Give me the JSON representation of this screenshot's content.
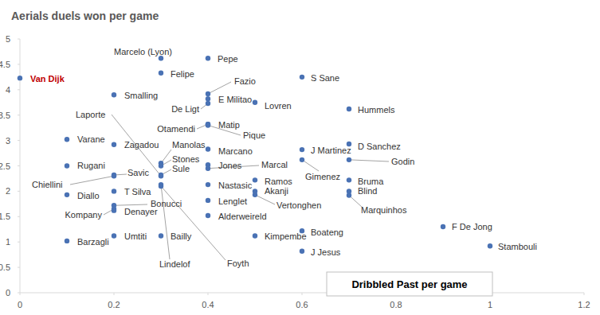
{
  "chart_data": {
    "type": "scatter",
    "title": "Aerials duels won per game",
    "x_label": "Dribbled Past per game",
    "xlim": [
      0,
      1.2
    ],
    "xticks": [
      0,
      0.2,
      0.4,
      0.6,
      0.8,
      1,
      1.2
    ],
    "ylim": [
      0,
      5
    ],
    "yticks": [
      0,
      0.5,
      1,
      1.5,
      2,
      2.5,
      3,
      3.5,
      4,
      4.5,
      5
    ],
    "grid": false,
    "color": "#4a72b4",
    "marker": "circle",
    "labels": [
      "Van Dijk",
      "Marcelo (Lyon)",
      "Pepe",
      "Felipe",
      "Smalling",
      "Fazio",
      "E Militao",
      "De Ligt",
      "Lovren",
      "S Sane",
      "Hummels",
      "Otamendi",
      "Matip",
      "Pique",
      "Varane",
      "Laporte",
      "Zagadou",
      "Manolas",
      "Stones",
      "Savic",
      "Sule",
      "Chiellini",
      "Rugani",
      "Marcano",
      "Jones",
      "Marcal",
      "J Martinez",
      "D Sanchez",
      "Gimenez",
      "Godin",
      "T Silva",
      "Diallo",
      "Lindelof",
      "Foyth",
      "Nastasic",
      "Ramos",
      "Akanji",
      "Vertonghen",
      "Bruma",
      "Blind",
      "Marquinhos",
      "Bonucci",
      "Kompany",
      "Denayer",
      "Lenglet",
      "Alderweireld",
      "Umtiti",
      "Barzagli",
      "Bailly",
      "Kimpembe",
      "Boateng",
      "J Jesus",
      "F De Jong",
      "Stambouli"
    ],
    "x": [
      0,
      0.3,
      0.4,
      0.3,
      0.2,
      0.4,
      0.4,
      0.4,
      0.5,
      0.6,
      0.7,
      0.4,
      0.4,
      0.4,
      0.1,
      0.3,
      0.2,
      0.3,
      0.3,
      0.2,
      0.3,
      0.2,
      0.1,
      0.4,
      0.4,
      0.4,
      0.6,
      0.7,
      0.6,
      0.7,
      0.2,
      0.1,
      0.3,
      0.3,
      0.4,
      0.5,
      0.5,
      0.5,
      0.7,
      0.7,
      0.7,
      0.2,
      0.2,
      0.2,
      0.4,
      0.4,
      0.2,
      0.1,
      0.3,
      0.5,
      0.6,
      0.6,
      0.9,
      1
    ],
    "values": [
      4.23,
      4.62,
      4.62,
      4.33,
      3.9,
      3.92,
      3.82,
      3.73,
      3.75,
      4.25,
      3.62,
      3.32,
      3.32,
      3.3,
      3.02,
      2.3,
      2.92,
      2.55,
      2.5,
      2.32,
      2.32,
      2.3,
      2.5,
      2.83,
      2.52,
      2.45,
      2.82,
      2.93,
      2.62,
      2.62,
      2.0,
      1.93,
      2.13,
      2.1,
      2.13,
      2.22,
      2.0,
      1.93,
      2.22,
      2.0,
      1.92,
      1.72,
      1.65,
      1.62,
      1.82,
      1.52,
      1.12,
      1.02,
      1.12,
      1.12,
      1.22,
      0.82,
      1.3,
      0.92
    ]
  }
}
